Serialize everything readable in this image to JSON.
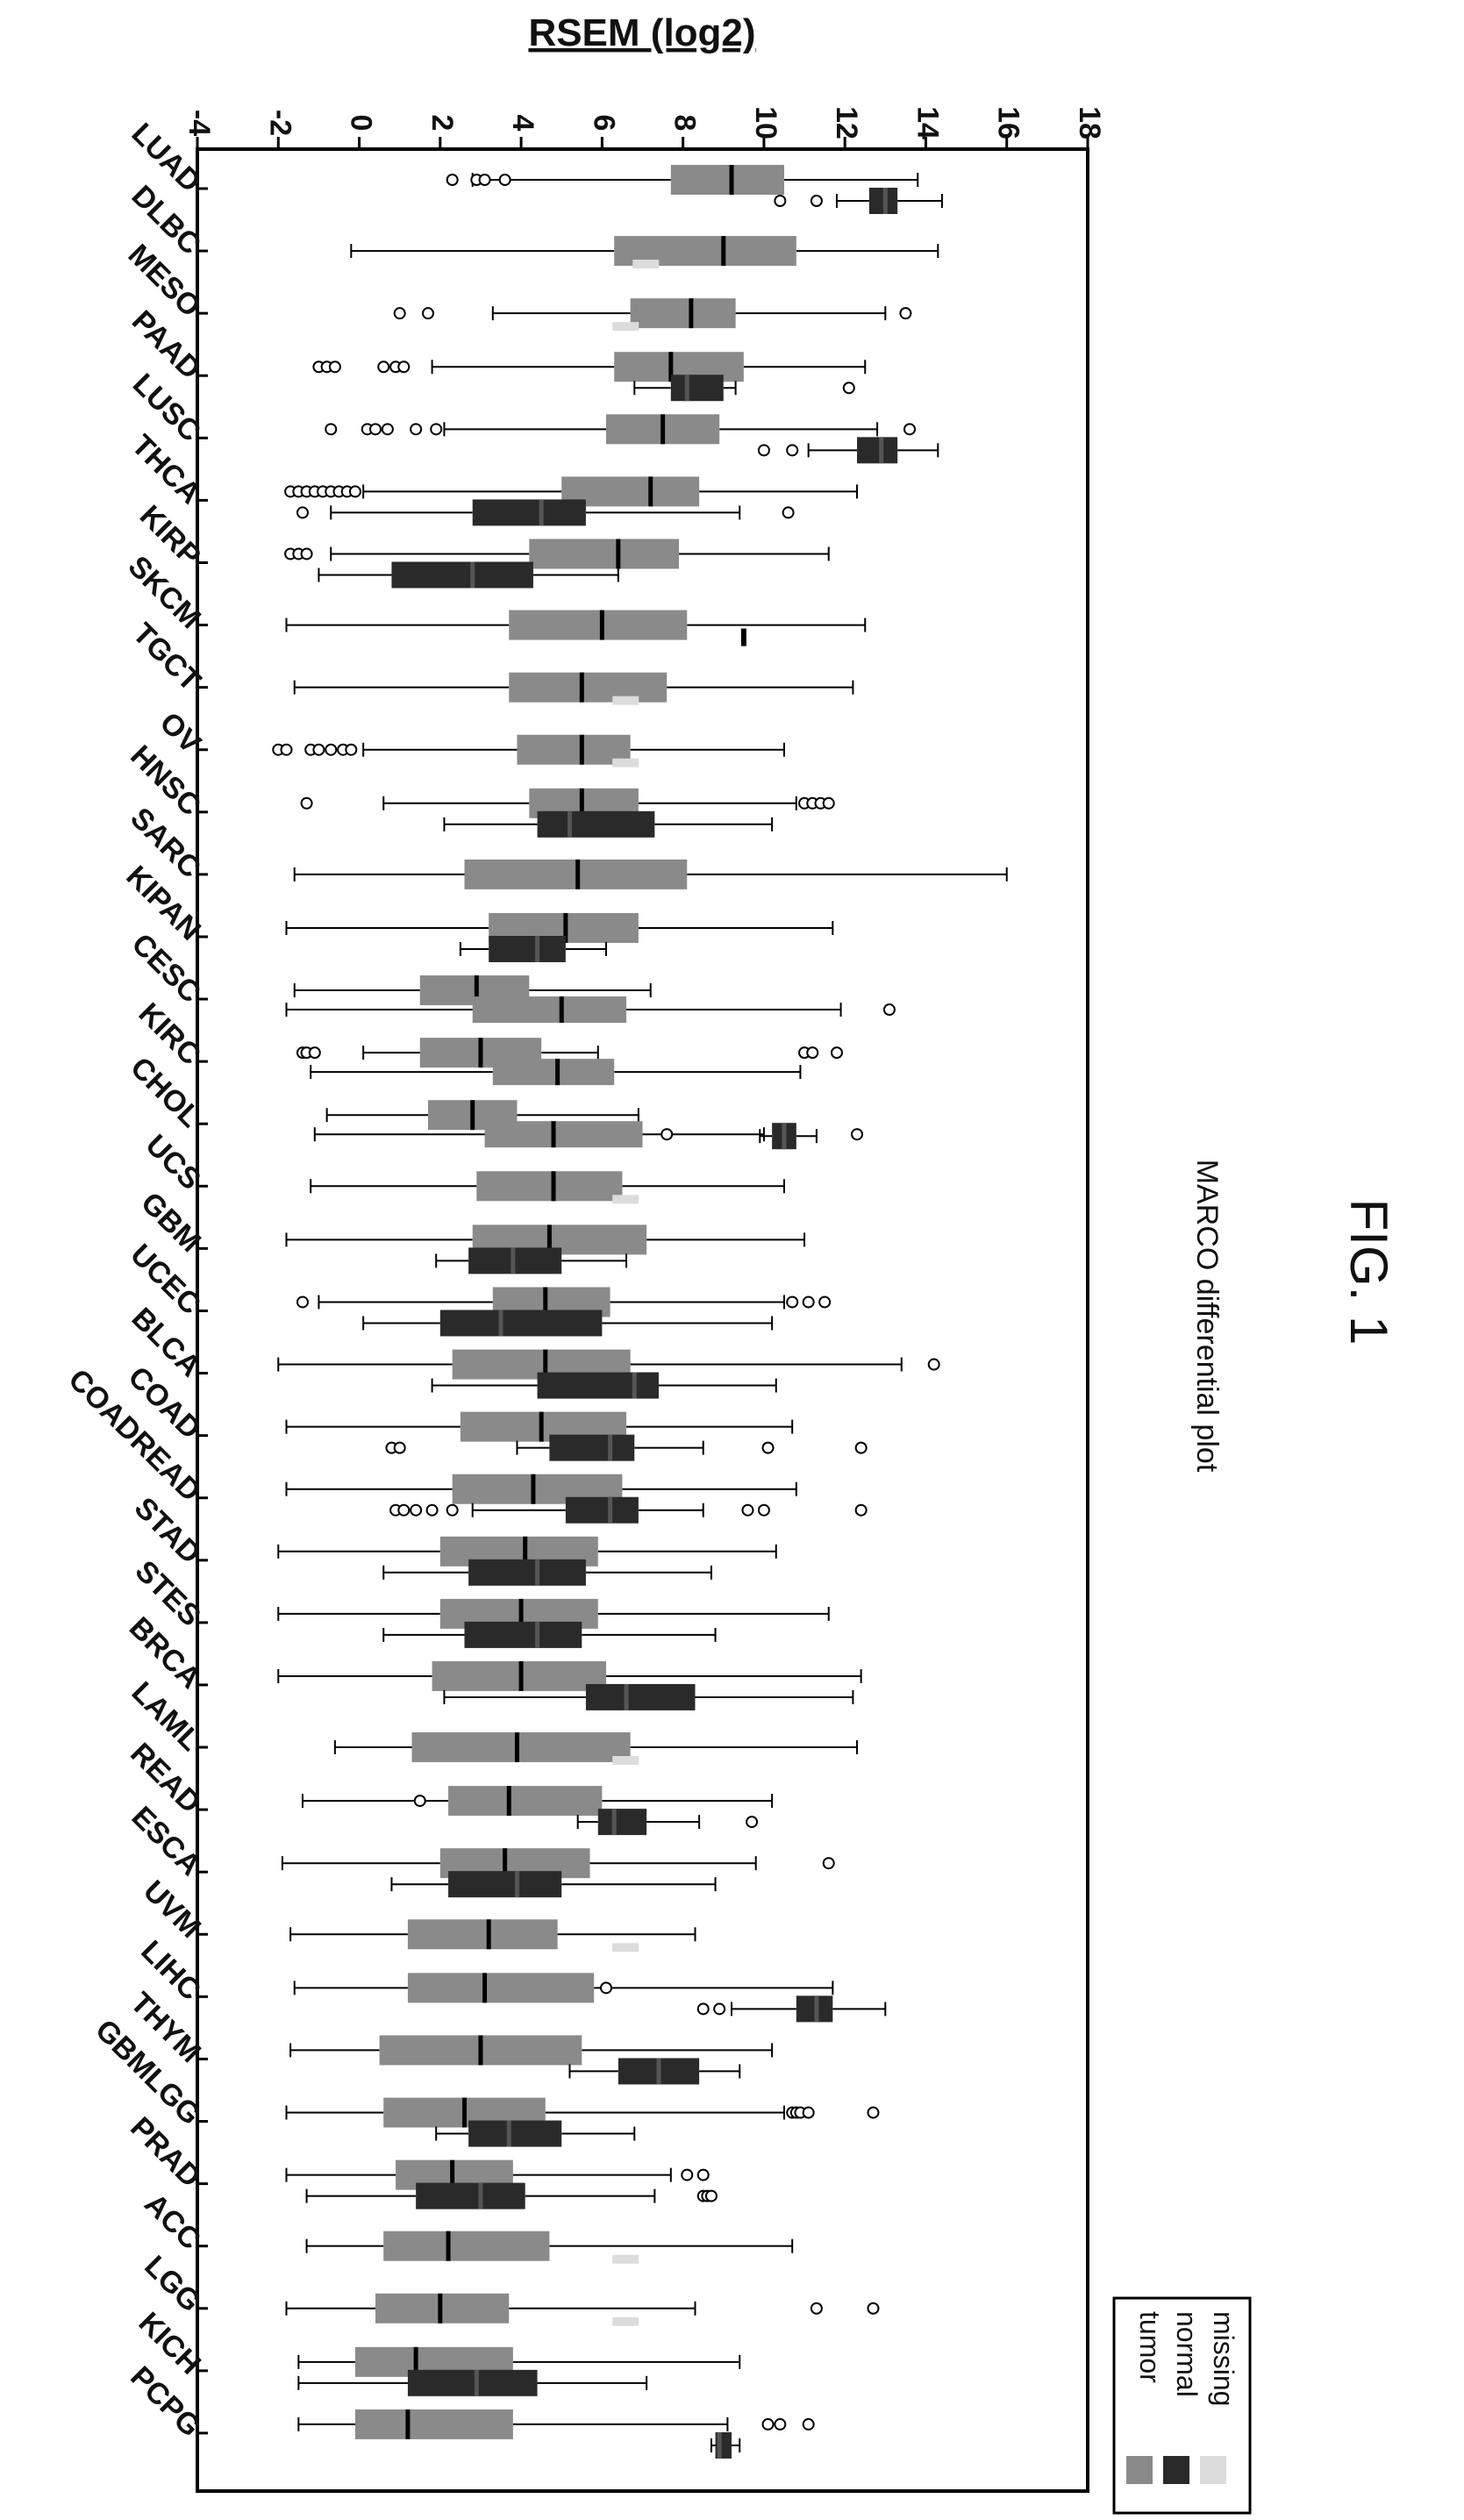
{
  "figure_label": "FIG. 1",
  "chart_data": {
    "type": "box",
    "orientation": "rotated-90",
    "title": "MARCO differential plot",
    "ylabel": "RSEM (log2)",
    "ylim": [
      -4,
      18
    ],
    "yticks": [
      -4,
      -2,
      0,
      2,
      4,
      6,
      8,
      10,
      12,
      14,
      16,
      18
    ],
    "legend": {
      "placement": "bottom-right",
      "entries": [
        {
          "label": "tumor",
          "color": "#8a8a8a"
        },
        {
          "label": "normal",
          "color": "#2a2a2a"
        },
        {
          "label": "missing",
          "color": "#dcdcdc"
        }
      ]
    },
    "categories": [
      {
        "name": "LUAD",
        "tumor": {
          "min": 2.8,
          "q1": 7.7,
          "median": 9.2,
          "q3": 10.5,
          "max": 13.8,
          "outliers": [
            2.3,
            2.9,
            3.1,
            3.6
          ]
        },
        "normal": {
          "min": 11.8,
          "q1": 12.6,
          "median": 13.0,
          "q3": 13.3,
          "max": 14.4,
          "outliers": [
            10.4,
            11.3
          ]
        }
      },
      {
        "name": "DLBC",
        "tumor": {
          "min": -0.2,
          "q1": 6.3,
          "median": 9.0,
          "q3": 10.8,
          "max": 14.3,
          "outliers": []
        },
        "missing": 6.8
      },
      {
        "name": "MESO",
        "tumor": {
          "min": 3.3,
          "q1": 6.7,
          "median": 8.2,
          "q3": 9.3,
          "max": 13.0,
          "outliers": [
            1.0,
            1.7,
            13.5
          ]
        },
        "missing": 6.3
      },
      {
        "name": "PAAD",
        "tumor": {
          "min": 1.8,
          "q1": 6.3,
          "median": 7.7,
          "q3": 9.5,
          "max": 12.5,
          "outliers": [
            -1.0,
            -0.8,
            -0.6,
            0.6,
            0.9,
            1.1
          ]
        },
        "normal": {
          "min": 6.8,
          "q1": 7.7,
          "median": 8.1,
          "q3": 9.0,
          "max": 9.3,
          "outliers": [
            12.1
          ]
        }
      },
      {
        "name": "LUSC",
        "tumor": {
          "min": 2.1,
          "q1": 6.1,
          "median": 7.5,
          "q3": 8.9,
          "max": 12.8,
          "outliers": [
            -0.7,
            0.2,
            0.4,
            0.7,
            1.4,
            1.9,
            13.6
          ]
        },
        "normal": {
          "min": 11.1,
          "q1": 12.3,
          "median": 12.9,
          "q3": 13.3,
          "max": 14.3,
          "outliers": [
            10.0,
            10.7
          ]
        }
      },
      {
        "name": "THCA",
        "tumor": {
          "min": 0.1,
          "q1": 5.0,
          "median": 7.2,
          "q3": 8.4,
          "max": 12.3,
          "outliers": [
            -1.7,
            -1.5,
            -1.3,
            -1.1,
            -0.9,
            -0.7,
            -0.5,
            -0.3,
            -0.1
          ]
        },
        "normal": {
          "min": -0.7,
          "q1": 2.8,
          "median": 4.5,
          "q3": 5.6,
          "max": 9.4,
          "outliers": [
            -1.4,
            10.6
          ]
        }
      },
      {
        "name": "KIRP",
        "tumor": {
          "min": -0.7,
          "q1": 4.2,
          "median": 6.4,
          "q3": 7.9,
          "max": 11.6,
          "outliers": [
            -1.7,
            -1.5,
            -1.3
          ]
        },
        "normal": {
          "min": -1.0,
          "q1": 0.8,
          "median": 2.8,
          "q3": 4.3,
          "max": 6.4,
          "outliers": []
        }
      },
      {
        "name": "SKCM",
        "tumor": {
          "min": -1.8,
          "q1": 3.7,
          "median": 6.0,
          "q3": 8.1,
          "max": 12.5,
          "outliers": []
        },
        "normal_single": 9.5
      },
      {
        "name": "TGCT",
        "tumor": {
          "min": -1.6,
          "q1": 3.7,
          "median": 5.5,
          "q3": 7.6,
          "max": 12.2,
          "outliers": []
        },
        "missing": 6.3
      },
      {
        "name": "OV",
        "tumor": {
          "min": 0.1,
          "q1": 3.9,
          "median": 5.5,
          "q3": 6.7,
          "max": 10.5,
          "outliers": [
            -2.0,
            -1.8,
            -1.2,
            -1.0,
            -0.7,
            -0.4,
            -0.2
          ]
        },
        "missing": 6.3
      },
      {
        "name": "HNSC",
        "tumor": {
          "min": 0.6,
          "q1": 4.2,
          "median": 5.5,
          "q3": 6.9,
          "max": 10.8,
          "outliers": [
            -1.3,
            11.0,
            11.2,
            11.4,
            11.6
          ]
        },
        "normal": {
          "min": 2.1,
          "q1": 4.4,
          "median": 5.2,
          "q3": 7.3,
          "max": 10.2,
          "outliers": []
        }
      },
      {
        "name": "SARC",
        "tumor": {
          "min": -1.6,
          "q1": 2.6,
          "median": 5.4,
          "q3": 8.1,
          "max": 16.0,
          "outliers": []
        }
      },
      {
        "name": "KIPAN",
        "tumor": {
          "min": -1.8,
          "q1": 3.2,
          "median": 5.1,
          "q3": 6.9,
          "max": 11.7,
          "outliers": []
        },
        "normal": {
          "min": 2.5,
          "q1": 3.2,
          "median": 4.4,
          "q3": 5.1,
          "max": 6.1,
          "outliers": []
        }
      },
      {
        "name": "CESC",
        "tumor": {
          "min": -1.6,
          "q1": 1.5,
          "median": 2.9,
          "q3": 4.2,
          "max": 7.2,
          "outliers": []
        },
        "normal_overlay": {
          "min": -1.8,
          "q1": 2.8,
          "median": 5.0,
          "q3": 6.6,
          "max": 11.9,
          "outliers": [
            13.1
          ]
        }
      },
      {
        "name": "KIRC",
        "tumor": {
          "min": 0.1,
          "q1": 1.5,
          "median": 3.0,
          "q3": 4.5,
          "max": 5.9,
          "outliers": [
            -1.4,
            -1.3,
            -1.1,
            11.0,
            11.2,
            11.8
          ]
        },
        "normal_overlay": {
          "min": -1.2,
          "q1": 3.3,
          "median": 4.9,
          "q3": 6.3,
          "max": 10.9,
          "outliers": []
        }
      },
      {
        "name": "CHOL",
        "tumor": {
          "min": -0.8,
          "q1": 1.7,
          "median": 2.8,
          "q3": 3.9,
          "max": 6.9,
          "outliers": []
        },
        "normal_overlay": {
          "min": -1.1,
          "q1": 3.1,
          "median": 4.8,
          "q3": 7.0,
          "max": 10.0,
          "outliers": [
            7.6,
            12.3
          ]
        },
        "normal": {
          "min": 9.9,
          "q1": 10.2,
          "median": 10.5,
          "q3": 10.8,
          "max": 11.3,
          "outliers": []
        }
      },
      {
        "name": "UCS",
        "tumor": {
          "min": -1.2,
          "q1": 2.9,
          "median": 4.8,
          "q3": 6.5,
          "max": 10.5,
          "outliers": []
        },
        "missing": 6.3
      },
      {
        "name": "GBM",
        "tumor": {
          "min": -1.8,
          "q1": 2.8,
          "median": 4.7,
          "q3": 7.1,
          "max": 11.0,
          "outliers": []
        },
        "normal": {
          "min": 1.9,
          "q1": 2.7,
          "median": 3.8,
          "q3": 5.0,
          "max": 6.6,
          "outliers": []
        }
      },
      {
        "name": "UCEC",
        "tumor": {
          "min": -1.0,
          "q1": 3.3,
          "median": 4.6,
          "q3": 6.2,
          "max": 10.5,
          "outliers": [
            -1.4,
            10.7,
            11.1,
            11.5
          ]
        },
        "normal": {
          "min": 0.1,
          "q1": 2.0,
          "median": 3.5,
          "q3": 6.0,
          "max": 10.2,
          "outliers": []
        }
      },
      {
        "name": "BLCA",
        "tumor": {
          "min": -2.0,
          "q1": 2.3,
          "median": 4.6,
          "q3": 6.7,
          "max": 13.4,
          "outliers": [
            14.2
          ]
        },
        "normal": {
          "min": 1.8,
          "q1": 4.4,
          "median": 6.8,
          "q3": 7.4,
          "max": 10.3,
          "outliers": []
        }
      },
      {
        "name": "COAD",
        "tumor": {
          "min": -1.8,
          "q1": 2.5,
          "median": 4.5,
          "q3": 6.6,
          "max": 10.7,
          "outliers": []
        },
        "normal": {
          "min": 3.9,
          "q1": 4.7,
          "median": 6.2,
          "q3": 6.8,
          "max": 8.5,
          "outliers": [
            0.8,
            1.0,
            10.1,
            12.4
          ]
        }
      },
      {
        "name": "COADREAD",
        "tumor": {
          "min": -1.8,
          "q1": 2.3,
          "median": 4.3,
          "q3": 6.5,
          "max": 10.8,
          "outliers": []
        },
        "normal": {
          "min": 2.8,
          "q1": 5.1,
          "median": 6.2,
          "q3": 6.9,
          "max": 8.5,
          "outliers": [
            0.9,
            1.1,
            1.4,
            1.8,
            2.3,
            9.6,
            10.0,
            12.4
          ]
        }
      },
      {
        "name": "STAD",
        "tumor": {
          "min": -2.0,
          "q1": 2.0,
          "median": 4.1,
          "q3": 5.9,
          "max": 10.3,
          "outliers": []
        },
        "normal": {
          "min": 0.6,
          "q1": 2.7,
          "median": 4.4,
          "q3": 5.6,
          "max": 8.7,
          "outliers": []
        }
      },
      {
        "name": "STES",
        "tumor": {
          "min": -2.0,
          "q1": 2.0,
          "median": 4.0,
          "q3": 5.9,
          "max": 11.6,
          "outliers": []
        },
        "normal": {
          "min": 0.6,
          "q1": 2.6,
          "median": 4.4,
          "q3": 5.5,
          "max": 8.8,
          "outliers": []
        }
      },
      {
        "name": "BRCA",
        "tumor": {
          "min": -2.0,
          "q1": 1.8,
          "median": 4.0,
          "q3": 6.1,
          "max": 12.4,
          "outliers": []
        },
        "normal": {
          "min": 2.1,
          "q1": 5.6,
          "median": 6.6,
          "q3": 8.3,
          "max": 12.2,
          "outliers": []
        }
      },
      {
        "name": "LAML",
        "tumor": {
          "min": -0.6,
          "q1": 1.3,
          "median": 3.9,
          "q3": 6.7,
          "max": 12.3,
          "outliers": []
        },
        "missing": 6.3
      },
      {
        "name": "READ",
        "tumor": {
          "min": -1.4,
          "q1": 2.2,
          "median": 3.7,
          "q3": 6.0,
          "max": 10.2,
          "outliers": [
            1.5
          ]
        },
        "normal": {
          "min": 5.4,
          "q1": 5.9,
          "median": 6.3,
          "q3": 7.1,
          "max": 8.4,
          "outliers": [
            9.7
          ]
        }
      },
      {
        "name": "ESCA",
        "tumor": {
          "min": -1.9,
          "q1": 2.0,
          "median": 3.6,
          "q3": 5.7,
          "max": 9.8,
          "outliers": [
            11.6
          ]
        },
        "normal": {
          "min": 0.8,
          "q1": 2.2,
          "median": 3.9,
          "q3": 5.0,
          "max": 8.8,
          "outliers": []
        }
      },
      {
        "name": "UVM",
        "tumor": {
          "min": -1.7,
          "q1": 1.2,
          "median": 3.2,
          "q3": 4.9,
          "max": 8.3,
          "outliers": []
        },
        "missing": 6.3
      },
      {
        "name": "LIHC",
        "tumor": {
          "min": -1.6,
          "q1": 1.2,
          "median": 3.1,
          "q3": 5.8,
          "max": 11.7,
          "outliers": [
            6.1
          ]
        },
        "normal": {
          "min": 9.2,
          "q1": 10.8,
          "median": 11.3,
          "q3": 11.7,
          "max": 13.0,
          "outliers": [
            8.5,
            8.9
          ]
        }
      },
      {
        "name": "THYM",
        "tumor": {
          "min": -1.7,
          "q1": 0.5,
          "median": 3.0,
          "q3": 5.5,
          "max": 10.2,
          "outliers": []
        },
        "normal": {
          "min": 5.2,
          "q1": 6.4,
          "median": 7.4,
          "q3": 8.4,
          "max": 9.4,
          "outliers": []
        }
      },
      {
        "name": "GBMLGG",
        "tumor": {
          "min": -1.8,
          "q1": 0.6,
          "median": 2.6,
          "q3": 4.6,
          "max": 10.5,
          "outliers": [
            10.7,
            10.8,
            10.9,
            11.1,
            12.7
          ]
        },
        "normal": {
          "min": 1.9,
          "q1": 2.7,
          "median": 3.7,
          "q3": 5.0,
          "max": 6.8,
          "outliers": []
        }
      },
      {
        "name": "PRAD",
        "tumor": {
          "min": -1.8,
          "q1": 0.9,
          "median": 2.3,
          "q3": 3.8,
          "max": 7.7,
          "outliers": [
            8.1,
            8.5
          ]
        },
        "normal": {
          "min": -1.3,
          "q1": 1.4,
          "median": 3.0,
          "q3": 4.1,
          "max": 7.3,
          "outliers": [
            8.5,
            8.6,
            8.7
          ]
        }
      },
      {
        "name": "ACC",
        "tumor": {
          "min": -1.3,
          "q1": 0.6,
          "median": 2.2,
          "q3": 4.7,
          "max": 10.7,
          "outliers": []
        },
        "missing": 6.3
      },
      {
        "name": "LGG",
        "tumor": {
          "min": -1.8,
          "q1": 0.4,
          "median": 2.0,
          "q3": 3.7,
          "max": 8.3,
          "outliers": [
            11.3,
            12.7
          ]
        },
        "missing": 6.3
      },
      {
        "name": "KICH",
        "tumor": {
          "min": -1.5,
          "q1": -0.1,
          "median": 1.4,
          "q3": 3.8,
          "max": 9.4,
          "outliers": []
        },
        "normal": {
          "min": -1.5,
          "q1": 1.2,
          "median": 2.9,
          "q3": 4.4,
          "max": 7.1,
          "outliers": []
        }
      },
      {
        "name": "PCPG",
        "tumor": {
          "min": -1.5,
          "q1": -0.1,
          "median": 1.2,
          "q3": 3.8,
          "max": 9.1,
          "outliers": [
            10.1,
            10.4,
            11.1
          ]
        },
        "normal": {
          "min": 8.7,
          "q1": 8.8,
          "median": 8.9,
          "q3": 9.2,
          "max": 9.4,
          "outliers": []
        }
      }
    ]
  }
}
